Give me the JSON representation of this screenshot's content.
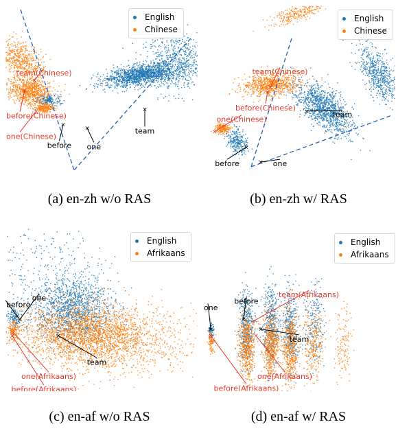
{
  "figure": {
    "colors": {
      "english": "#1f77b4",
      "other": "#ff7f0e",
      "annotation_red": "#e8392b",
      "annotation_black": "#000000",
      "guide_line": "#1f5fb4"
    }
  },
  "chart_data": [
    {
      "type": "scatter",
      "caption": "(a) en-zh w/o RAS",
      "legend": [
        "English",
        "Chinese"
      ],
      "legend_position": "top-right",
      "grid": false,
      "series": [
        {
          "name": "English",
          "clusters": [
            {
              "cx": 0.4,
              "cy": 0.46,
              "sx": 0.2,
              "sy": 0.07,
              "rot": -15,
              "n": 1400
            },
            {
              "cx": 0.78,
              "cy": 0.28,
              "sx": 0.18,
              "sy": 0.22,
              "rot": 0,
              "n": 700
            },
            {
              "cx": -0.55,
              "cy": 0.83,
              "sx": 0.06,
              "sy": 0.045,
              "rot": 0,
              "n": 180
            }
          ]
        },
        {
          "name": "Chinese",
          "clusters": [
            {
              "cx": -0.85,
              "cy": 0.25,
              "sx": 0.1,
              "sy": 0.16,
              "rot": -30,
              "n": 550
            },
            {
              "cx": -0.75,
              "cy": 0.7,
              "sx": 0.11,
              "sy": 0.1,
              "rot": 20,
              "n": 750
            },
            {
              "cx": -0.6,
              "cy": 0.95,
              "sx": 0.05,
              "sy": 0.035,
              "rot": 0,
              "n": 220
            }
          ]
        }
      ],
      "annotations": [
        {
          "text": "team(Chinese)",
          "color": "red",
          "x": -0.7,
          "y": 0.55,
          "tx": -0.6,
          "ty": 0.42
        },
        {
          "text": "before(Chinese)",
          "color": "red",
          "x": -0.8,
          "y": 0.7,
          "tx": -0.85,
          "ty": 1.05
        },
        {
          "text": "one(Chinese)",
          "color": "red",
          "x": -0.68,
          "y": 1.0,
          "tx": -0.85,
          "ty": 1.35
        },
        {
          "text": "team",
          "color": "black",
          "x": 0.45,
          "y": 0.97,
          "tx": 0.45,
          "ty": 1.27
        },
        {
          "text": "before",
          "color": "black",
          "x": -0.4,
          "y": 1.2,
          "tx": -0.44,
          "ty": 1.48
        },
        {
          "text": "one",
          "color": "black",
          "x": -0.15,
          "y": 1.25,
          "tx": -0.08,
          "ty": 1.5
        }
      ]
    },
    {
      "type": "scatter",
      "caption": "(b) en-zh w/ RAS",
      "legend": [
        "English",
        "Chinese"
      ],
      "legend_position": "top-right",
      "grid": false,
      "series": [
        {
          "name": "English",
          "clusters": [
            {
              "cx": 0.25,
              "cy": 0.95,
              "sx": 0.1,
              "sy": 0.22,
              "rot": -35,
              "n": 1100
            },
            {
              "cx": 0.82,
              "cy": 0.45,
              "sx": 0.08,
              "sy": 0.22,
              "rot": -20,
              "n": 600
            },
            {
              "cx": -0.65,
              "cy": 1.45,
              "sx": 0.05,
              "sy": 0.1,
              "rot": -15,
              "n": 260
            }
          ]
        },
        {
          "name": "Chinese",
          "clusters": [
            {
              "cx": -0.3,
              "cy": 0.6,
              "sx": 0.15,
              "sy": 0.08,
              "rot": -10,
              "n": 800
            },
            {
              "cx": 0.0,
              "cy": -0.45,
              "sx": 0.18,
              "sy": 0.05,
              "rot": -28,
              "n": 260
            },
            {
              "cx": -0.8,
              "cy": 1.25,
              "sx": 0.04,
              "sy": 0.035,
              "rot": 0,
              "n": 200
            }
          ]
        }
      ],
      "annotations": [
        {
          "text": "team(Chinese)",
          "color": "red",
          "x": -0.3,
          "y": 0.65,
          "tx": -0.2,
          "ty": 0.4
        },
        {
          "text": "before(Chinese)",
          "color": "red",
          "x": -0.33,
          "y": 0.72,
          "tx": -0.35,
          "ty": 0.93
        },
        {
          "text": "one(Chinese)",
          "color": "red",
          "x": -0.88,
          "y": 1.3,
          "tx": -0.6,
          "ty": 1.1
        },
        {
          "text": "team",
          "color": "black",
          "x": 0.08,
          "y": 1.0,
          "tx": 0.45,
          "ty": 1.03
        },
        {
          "text": "before",
          "color": "black",
          "x": -0.55,
          "y": 1.53,
          "tx": -0.75,
          "ty": 1.75
        },
        {
          "text": "one",
          "color": "black",
          "x": -0.4,
          "y": 1.75,
          "tx": -0.2,
          "ty": 1.75
        }
      ]
    },
    {
      "type": "scatter",
      "caption": "(c) en-af w/o RAS",
      "legend": [
        "English",
        "Afrikaans"
      ],
      "legend_position": "top-right",
      "grid": false,
      "series": [
        {
          "name": "English",
          "clusters": [
            {
              "cx": -0.3,
              "cy": 0.7,
              "sx": 0.2,
              "sy": 0.25,
              "rot": 0,
              "n": 1400
            },
            {
              "cx": -0.92,
              "cy": 0.8,
              "sx": 0.03,
              "sy": 0.08,
              "rot": 0,
              "n": 120
            },
            {
              "cx": -0.65,
              "cy": 0.1,
              "sx": 0.35,
              "sy": 0.5,
              "rot": 0,
              "n": 300
            }
          ]
        },
        {
          "name": "Afrikaans",
          "clusters": [
            {
              "cx": -0.2,
              "cy": 1.05,
              "sx": 0.32,
              "sy": 0.22,
              "rot": 0,
              "n": 1900
            },
            {
              "cx": 0.2,
              "cy": 1.2,
              "sx": 0.4,
              "sy": 0.25,
              "rot": 0,
              "n": 900
            },
            {
              "cx": -0.92,
              "cy": 1.0,
              "sx": 0.03,
              "sy": 0.07,
              "rot": 0,
              "n": 150
            }
          ]
        }
      ],
      "annotations": [
        {
          "text": "one",
          "color": "black",
          "x": -0.85,
          "y": 0.85,
          "tx": -0.65,
          "ty": 0.5
        },
        {
          "text": "before",
          "color": "black",
          "x": -0.88,
          "y": 0.8,
          "tx": -1.0,
          "ty": 0.6
        },
        {
          "text": "team",
          "color": "black",
          "x": -0.45,
          "y": 1.1,
          "tx": -0.05,
          "ty": 1.48
        },
        {
          "text": "one(Afrikaans)",
          "color": "red",
          "x": -0.92,
          "y": 1.05,
          "tx": -0.55,
          "ty": 1.7
        },
        {
          "text": "before(Afrikaans)",
          "color": "red",
          "x": -0.93,
          "y": 1.1,
          "tx": -0.6,
          "ty": 1.9
        }
      ]
    },
    {
      "type": "scatter",
      "caption": "(d) en-af w/ RAS",
      "legend": [
        "English",
        "Afrikaans"
      ],
      "legend_position": "top-right",
      "grid": false,
      "series": [
        {
          "name": "English",
          "clusters": [
            {
              "cx": -0.55,
              "cy": 0.95,
              "sx": 0.04,
              "sy": 0.28,
              "rot": 0,
              "n": 420
            },
            {
              "cx": -0.3,
              "cy": 0.95,
              "sx": 0.04,
              "sy": 0.32,
              "rot": 0,
              "n": 420
            },
            {
              "cx": -0.1,
              "cy": 1.0,
              "sx": 0.04,
              "sy": 0.3,
              "rot": 0,
              "n": 380
            },
            {
              "cx": 0.15,
              "cy": 0.9,
              "sx": 0.05,
              "sy": 0.3,
              "rot": 0,
              "n": 200
            },
            {
              "cx": -0.92,
              "cy": 1.02,
              "sx": 0.015,
              "sy": 0.07,
              "rot": 0,
              "n": 80
            }
          ]
        },
        {
          "name": "Afrikaans",
          "clusters": [
            {
              "cx": -0.55,
              "cy": 1.25,
              "sx": 0.04,
              "sy": 0.25,
              "rot": 0,
              "n": 520
            },
            {
              "cx": -0.3,
              "cy": 1.25,
              "sx": 0.04,
              "sy": 0.25,
              "rot": 0,
              "n": 520
            },
            {
              "cx": -0.1,
              "cy": 1.3,
              "sx": 0.04,
              "sy": 0.3,
              "rot": 0,
              "n": 480
            },
            {
              "cx": 0.15,
              "cy": 1.2,
              "sx": 0.05,
              "sy": 0.3,
              "rot": 0,
              "n": 260
            },
            {
              "cx": 0.45,
              "cy": 1.2,
              "sx": 0.05,
              "sy": 0.3,
              "rot": 0,
              "n": 130
            },
            {
              "cx": -0.92,
              "cy": 1.2,
              "sx": 0.015,
              "sy": 0.07,
              "rot": 0,
              "n": 90
            }
          ]
        }
      ],
      "annotations": [
        {
          "text": "one",
          "color": "black",
          "x": -0.92,
          "y": 1.0,
          "tx": -0.95,
          "ty": 0.65
        },
        {
          "text": "before",
          "color": "black",
          "x": -0.58,
          "y": 0.85,
          "tx": -0.55,
          "ty": 0.55
        },
        {
          "text": "team(Afrikaans)",
          "color": "red",
          "x": -0.48,
          "y": 0.88,
          "tx": 0.1,
          "ty": 0.45
        },
        {
          "text": "team",
          "color": "black",
          "x": -0.4,
          "y": 1.0,
          "tx": 0.0,
          "ty": 1.13
        },
        {
          "text": "one(Afrikaans)",
          "color": "red",
          "x": -0.45,
          "y": 1.1,
          "tx": -0.15,
          "ty": 1.7
        },
        {
          "text": "before(Afrikaans)",
          "color": "red",
          "x": -0.92,
          "y": 1.1,
          "tx": -0.55,
          "ty": 1.88
        }
      ]
    }
  ]
}
